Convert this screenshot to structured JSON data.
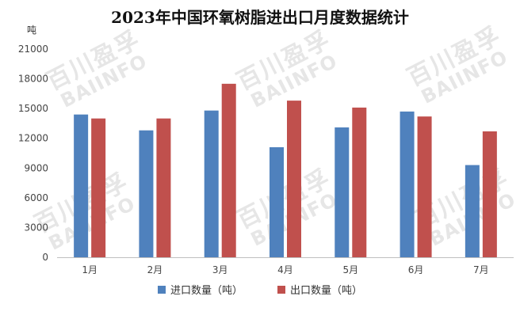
{
  "chart_data": {
    "type": "bar",
    "title": "2023年中国环氧树脂进出口月度数据统计",
    "unit_label": "吨",
    "categories": [
      "1月",
      "2月",
      "3月",
      "4月",
      "5月",
      "6月",
      "7月"
    ],
    "series": [
      {
        "name": "进口数量（吨）",
        "color": "#4F81BD",
        "values": [
          14400,
          12800,
          14800,
          11100,
          13100,
          14700,
          9300
        ]
      },
      {
        "name": "出口数量（吨）",
        "color": "#C0504D",
        "values": [
          14000,
          14000,
          17500,
          15800,
          15100,
          14200,
          12700
        ]
      }
    ],
    "y_ticks": [
      "0",
      "3000",
      "6000",
      "9000",
      "12000",
      "15000",
      "18000",
      "21000"
    ],
    "ylim": [
      0,
      21000
    ],
    "grid": false,
    "legend_position": "bottom"
  },
  "watermark": {
    "cn": "百川盈孚",
    "en": "BAIINFO"
  }
}
